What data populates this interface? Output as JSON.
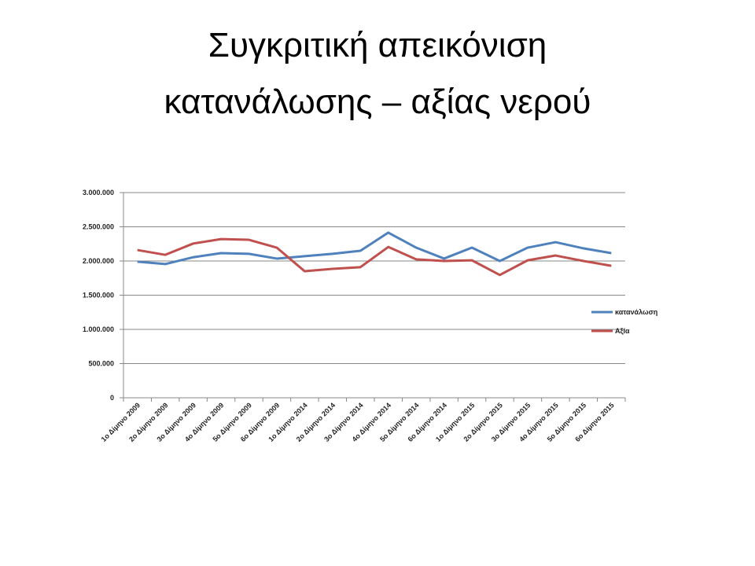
{
  "chart_data": {
    "type": "line",
    "title": "Συγκριτική απεικόνιση κατανάλωσης – αξίας νερού",
    "categories": [
      "1ο Δίμηνο 2009",
      "2ο Δίμηνο 2009",
      "3ο Δίμηνο 2009",
      "4ο Δίμηνο 2009",
      "5ο Δίμηνο 2009",
      "6ο Δίμηνο 2009",
      "1ο Δίμηνο 2014",
      "2ο Δίμηνο 2014",
      "3ο Δίμηνο 2014",
      "4ο Δίμηνο 2014",
      "5ο Δίμηνο 2014",
      "6ο Δίμηνο 2014",
      "1ο Δίμηνο 2015",
      "2ο Δίμηνο 2015",
      "3ο Δίμηνο 2015",
      "4ο Δίμηνο 2015",
      "5ο Δίμηνο 2015",
      "6ο Δίμηνο 2015"
    ],
    "series": [
      {
        "name": "κατανάλωση",
        "color": "#4f81bd",
        "values": [
          1990000,
          1955000,
          2055000,
          2115000,
          2105000,
          2035000,
          2070000,
          2105000,
          2150000,
          2415000,
          2195000,
          2035000,
          2195000,
          2000000,
          2195000,
          2275000,
          2185000,
          2115000
        ]
      },
      {
        "name": "Αξία",
        "color": "#c0504d",
        "values": [
          2160000,
          2090000,
          2255000,
          2320000,
          2310000,
          2195000,
          1850000,
          1885000,
          1910000,
          2205000,
          2025000,
          2000000,
          2010000,
          1795000,
          2010000,
          2080000,
          2000000,
          1930000
        ]
      }
    ],
    "ylim": [
      0,
      3000000
    ],
    "yticks": [
      {
        "value": 0,
        "label": "0"
      },
      {
        "value": 500000,
        "label": "500.000"
      },
      {
        "value": 1000000,
        "label": "1.000.000"
      },
      {
        "value": 1500000,
        "label": "1.500.000"
      },
      {
        "value": 2000000,
        "label": "2.000.000"
      },
      {
        "value": 2500000,
        "label": "2.500.000"
      },
      {
        "value": 3000000,
        "label": "3.000.000"
      }
    ],
    "grid": true,
    "legend": "right"
  }
}
